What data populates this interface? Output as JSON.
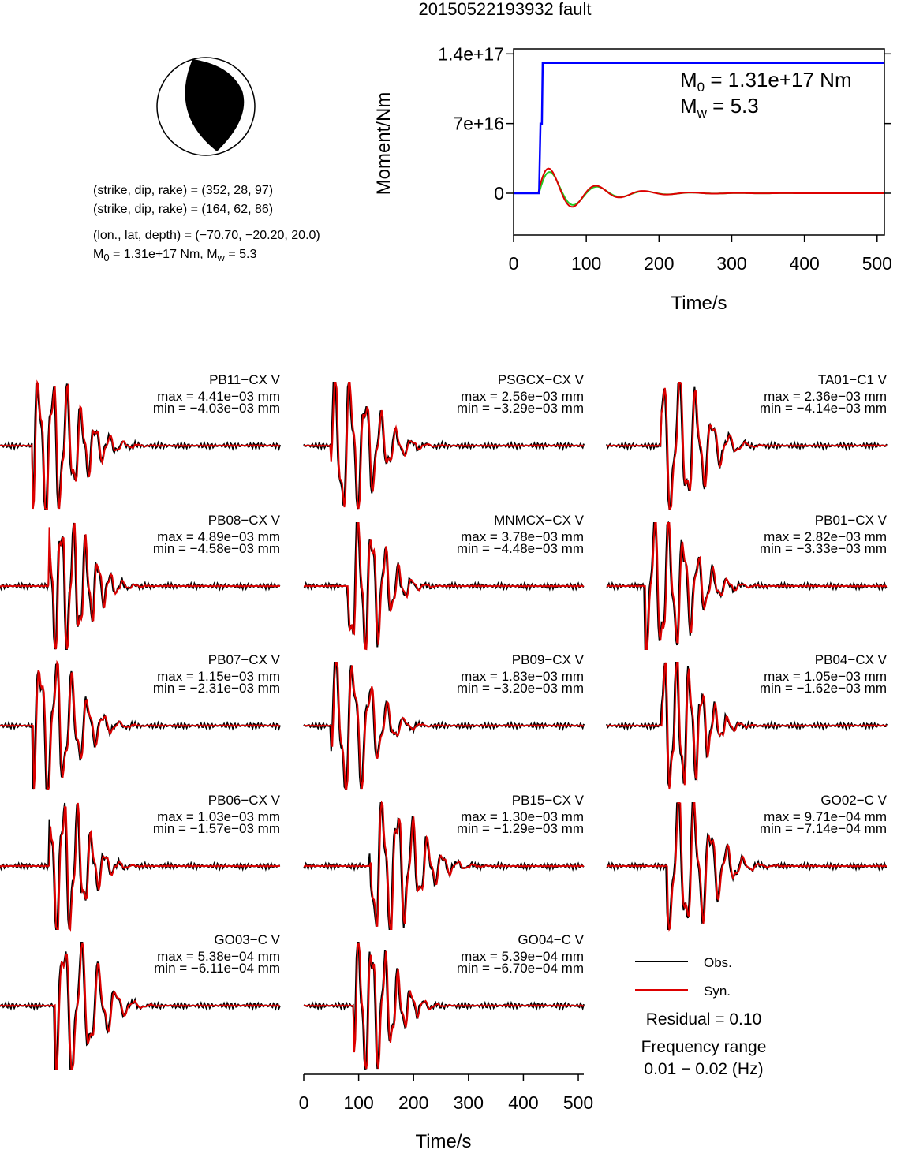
{
  "title": "20150522193932 fault",
  "mechanism": {
    "lines": [
      "(strike, dip, rake) = (352, 28, 97)",
      "(strike, dip, rake) = (164, 62, 86)",
      "(lon., lat, depth) = (−70.70, −20.20, 20.0)"
    ],
    "moment_line_prefix": "M",
    "moment_line_rest": " = 1.31e+17 Nm, M",
    "moment_line_end": " = 5.3"
  },
  "stf": {
    "ylabel": "Moment/Nm",
    "xlabel": "Time/s",
    "y_ticks": [
      "1.4e+17",
      "7e+16",
      "0"
    ],
    "y_tick_values": [
      1.4e+17,
      7e+16,
      0
    ],
    "x_ticks": [
      "0",
      "100",
      "200",
      "300",
      "400",
      "500"
    ],
    "m0_prefix": "M",
    "m0_sub": "0",
    "m0_rest": " = 1.31e+17 Nm",
    "mw_prefix": "M",
    "mw_sub": "w",
    "mw_rest": " = 5.3"
  },
  "chart_data": {
    "type": "line",
    "source_time_function": {
      "xlim": [
        0,
        510
      ],
      "ylim": [
        -4.2e+16,
        1.45e+17
      ],
      "cumulative_moment": {
        "x": [
          0,
          35,
          37,
          39,
          40,
          510
        ],
        "y": [
          0,
          0,
          7e+16,
          7e+16,
          1.31e+17,
          1.31e+17
        ],
        "color": "#0000ff"
      }
    },
    "waveforms": {
      "time_axis": {
        "label": "Time/s",
        "ticks": [
          0,
          100,
          200,
          300,
          400,
          500
        ],
        "xlim": [
          0,
          510
        ]
      },
      "stations": [
        {
          "name": "PB11−CX V",
          "max": "max = 4.41e−03 mm",
          "min": "min = −4.03e−03 mm"
        },
        {
          "name": "PSGCX−CX V",
          "max": "max = 2.56e−03 mm",
          "min": "min = −3.29e−03 mm"
        },
        {
          "name": "TA01−C1 V",
          "max": "max = 2.36e−03 mm",
          "min": "min = −4.14e−03 mm"
        },
        {
          "name": "PB08−CX V",
          "max": "max = 4.89e−03 mm",
          "min": "min = −4.58e−03 mm"
        },
        {
          "name": "MNMCX−CX V",
          "max": "max = 3.78e−03 mm",
          "min": "min = −4.48e−03 mm"
        },
        {
          "name": "PB01−CX V",
          "max": "max = 2.82e−03 mm",
          "min": "min = −3.33e−03 mm"
        },
        {
          "name": "PB07−CX V",
          "max": "max = 1.15e−03 mm",
          "min": "min = −2.31e−03 mm"
        },
        {
          "name": "PB09−CX V",
          "max": "max = 1.83e−03 mm",
          "min": "min = −3.20e−03 mm"
        },
        {
          "name": "PB04−CX V",
          "max": "max = 1.05e−03 mm",
          "min": "min = −1.62e−03 mm"
        },
        {
          "name": "PB06−CX V",
          "max": "max = 1.03e−03 mm",
          "min": "min = −1.57e−03 mm"
        },
        {
          "name": "PB15−CX V",
          "max": "max = 1.30e−03 mm",
          "min": "min = −1.29e−03 mm"
        },
        {
          "name": "GO02−C V",
          "max": "max = 9.71e−04 mm",
          "min": "min = −7.14e−04 mm"
        },
        {
          "name": "GO03−C V",
          "max": "max = 5.38e−04 mm",
          "min": "min = −6.11e−04 mm"
        },
        {
          "name": "GO04−C V",
          "max": "max = 5.39e−04 mm",
          "min": "min = −6.70e−04 mm"
        }
      ]
    }
  },
  "legend": {
    "obs": "Obs.",
    "syn": "Syn.",
    "obs_color": "#000000",
    "syn_color": "#dd0000",
    "residual": "Residual = 0.10",
    "freq_label": "Frequency range",
    "freq_value": "0.01 − 0.02 (Hz)"
  },
  "colors": {
    "stf_line": "#0000ff",
    "stf_red": "#dd0000",
    "stf_green": "#22cc22"
  }
}
